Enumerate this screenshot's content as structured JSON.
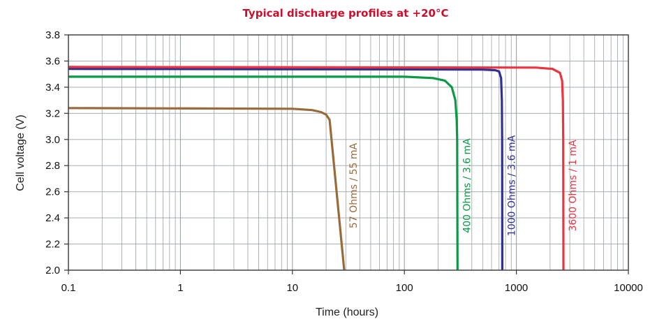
{
  "chart_data": {
    "type": "line",
    "title": "Typical discharge profiles at +20°C",
    "xlabel": "Time (hours)",
    "ylabel": "Cell voltage (V)",
    "xscale": "log",
    "xlim": [
      0.1,
      10000
    ],
    "ylim": [
      2.0,
      3.8
    ],
    "x_ticks": [
      "0.1",
      "1",
      "10",
      "100",
      "1000",
      "10000"
    ],
    "y_ticks": [
      "2.0",
      "2.2",
      "2.4",
      "2.6",
      "2.8",
      "3.0",
      "3.2",
      "3.4",
      "3.6",
      "3.8"
    ],
    "grid": true,
    "series": [
      {
        "name": "57 Ohms / 55 mA",
        "color": "#9a6a3a",
        "points": [
          [
            0.1,
            3.24
          ],
          [
            10,
            3.235
          ],
          [
            15,
            3.225
          ],
          [
            18,
            3.21
          ],
          [
            20,
            3.19
          ],
          [
            21.5,
            3.15
          ],
          [
            29,
            2.0
          ]
        ]
      },
      {
        "name": "400 Ohms / 3.6 mA",
        "color": "#0a9a45",
        "points": [
          [
            0.1,
            3.48
          ],
          [
            100,
            3.48
          ],
          [
            180,
            3.47
          ],
          [
            230,
            3.45
          ],
          [
            265,
            3.4
          ],
          [
            285,
            3.3
          ],
          [
            293,
            3.15
          ],
          [
            296,
            3.0
          ],
          [
            298,
            2.0
          ]
        ]
      },
      {
        "name": "1000 Ohms / 3.6 mA",
        "color": "#2e3192",
        "points": [
          [
            0.1,
            3.54
          ],
          [
            500,
            3.535
          ],
          [
            650,
            3.53
          ],
          [
            700,
            3.52
          ],
          [
            730,
            3.47
          ],
          [
            742,
            3.3
          ],
          [
            746,
            3.0
          ],
          [
            748,
            2.0
          ]
        ]
      },
      {
        "name": "3600 Ohms / 1 mA",
        "color": "#ee3340",
        "points": [
          [
            0.1,
            3.555
          ],
          [
            1500,
            3.55
          ],
          [
            2100,
            3.54
          ],
          [
            2450,
            3.51
          ],
          [
            2560,
            3.45
          ],
          [
            2600,
            3.3
          ],
          [
            2620,
            3.0
          ],
          [
            2630,
            2.0
          ]
        ]
      }
    ]
  },
  "colors": {
    "title": "#c8102e",
    "grid": "#9aa3a8",
    "axis": "#333333",
    "frame": "#444444"
  }
}
